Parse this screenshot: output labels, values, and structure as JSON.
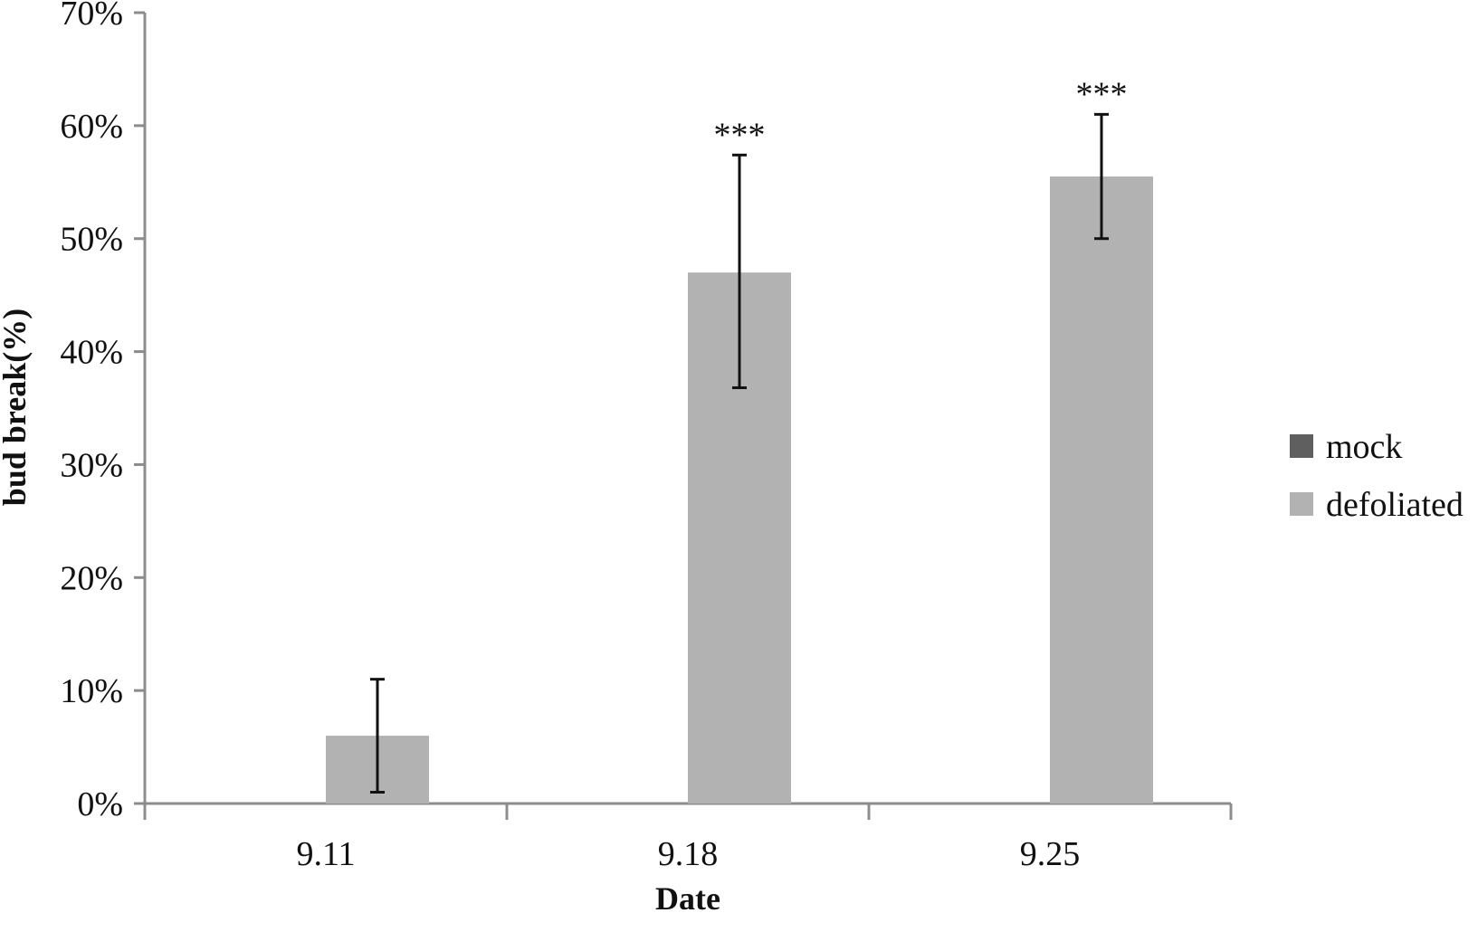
{
  "chart_data": {
    "type": "bar",
    "title": "",
    "xlabel": "Date",
    "ylabel": "bud break(%)",
    "categories": [
      "9.11",
      "9.18",
      "9.25"
    ],
    "ylim": [
      0,
      70
    ],
    "yticks": [
      0,
      10,
      20,
      30,
      40,
      50,
      60,
      70
    ],
    "ytick_labels": [
      "0%",
      "10%",
      "20%",
      "30%",
      "40%",
      "50%",
      "60%",
      "70%"
    ],
    "grid": false,
    "legend_position": "right",
    "series": [
      {
        "name": "mock",
        "color": "#5f5f5f",
        "values": [
          0,
          0,
          0
        ],
        "error": [
          null,
          null,
          null
        ]
      },
      {
        "name": "defoliated",
        "color": "#b2b2b2",
        "values": [
          6,
          47,
          55.5
        ],
        "error": [
          [
            1,
            11
          ],
          [
            36.8,
            57.4
          ],
          [
            50,
            61
          ]
        ]
      }
    ],
    "annotations": [
      "",
      "***",
      "***"
    ],
    "axis_color": "#8c8c8c",
    "errorbar_color": "#111111"
  }
}
